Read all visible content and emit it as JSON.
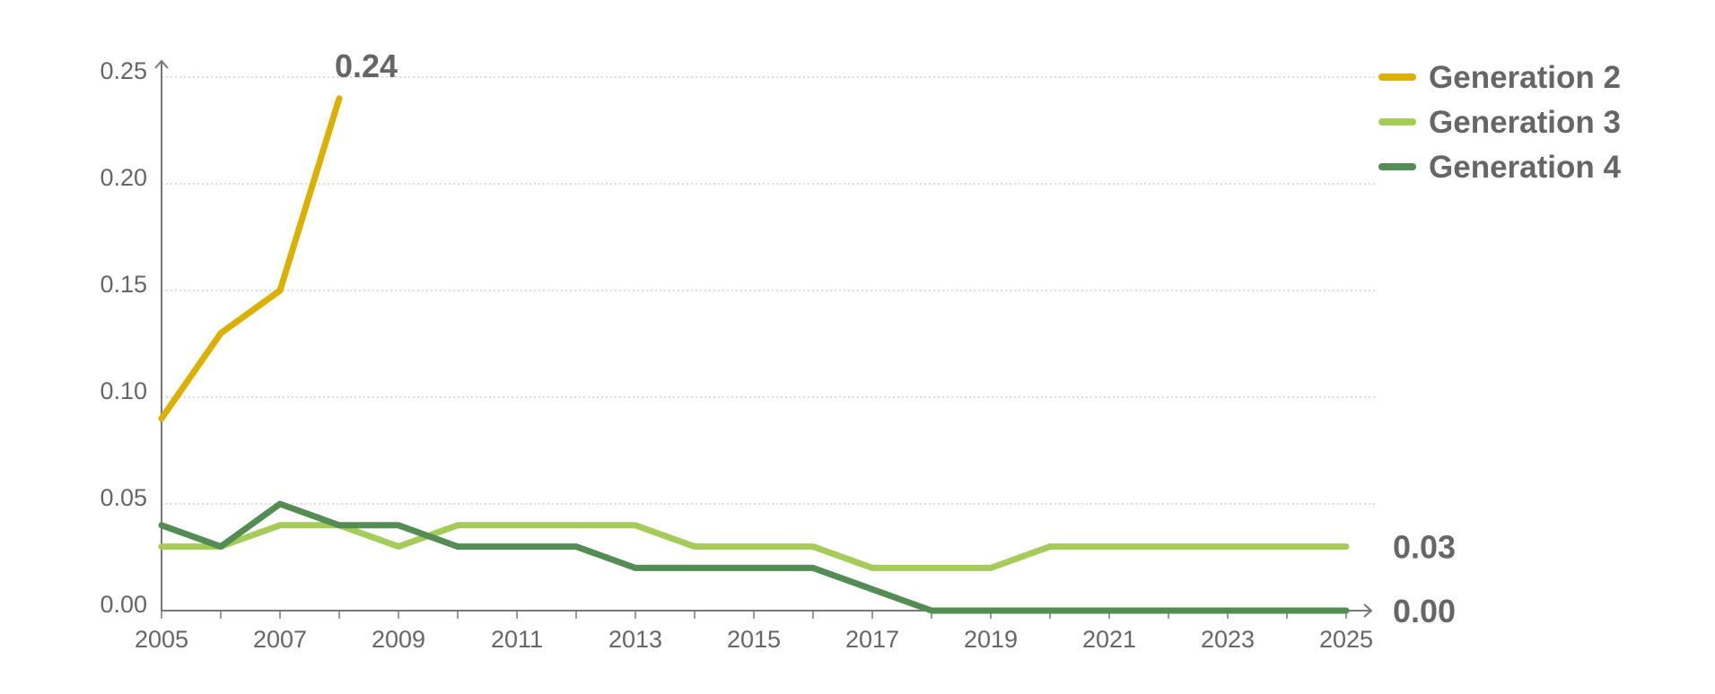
{
  "chart_data": {
    "type": "line",
    "title": "",
    "xlabel": "",
    "ylabel": "",
    "x": [
      2005,
      2006,
      2007,
      2008,
      2009,
      2010,
      2011,
      2012,
      2013,
      2014,
      2015,
      2016,
      2017,
      2018,
      2019,
      2020,
      2021,
      2022,
      2023,
      2024,
      2025
    ],
    "xlim": [
      2005,
      2025
    ],
    "ylim": [
      0,
      0.25
    ],
    "x_tick_labels": [
      "2005",
      "2007",
      "2009",
      "2011",
      "2013",
      "2015",
      "2017",
      "2019",
      "2021",
      "2023",
      "2025"
    ],
    "y_tick_labels": [
      "0.00",
      "0.05",
      "0.10",
      "0.15",
      "0.20",
      "0.25"
    ],
    "y_ticks": [
      0,
      0.05,
      0.1,
      0.15,
      0.2,
      0.25
    ],
    "grid": true,
    "legend_position": "top-right",
    "series": [
      {
        "name": "Generation 2",
        "color": "#DDB000",
        "values": [
          0.09,
          0.13,
          0.15,
          0.24,
          null,
          null,
          null,
          null,
          null,
          null,
          null,
          null,
          null,
          null,
          null,
          null,
          null,
          null,
          null,
          null,
          null
        ],
        "end_label": "0.24"
      },
      {
        "name": "Generation 3",
        "color": "#A5CC58",
        "values": [
          0.03,
          0.03,
          0.04,
          0.04,
          0.03,
          0.04,
          0.04,
          0.04,
          0.04,
          0.03,
          0.03,
          0.03,
          0.02,
          0.02,
          0.02,
          0.03,
          0.03,
          0.03,
          0.03,
          0.03,
          0.03
        ],
        "end_label": "0.03"
      },
      {
        "name": "Generation 4",
        "color": "#538D54",
        "values": [
          0.04,
          0.03,
          0.05,
          0.04,
          0.04,
          0.03,
          0.03,
          0.03,
          0.02,
          0.02,
          0.02,
          0.02,
          0.01,
          0.0,
          0.0,
          0.0,
          0.0,
          0.0,
          0.0,
          0.0,
          0.0
        ],
        "end_label": "0.00"
      }
    ]
  }
}
